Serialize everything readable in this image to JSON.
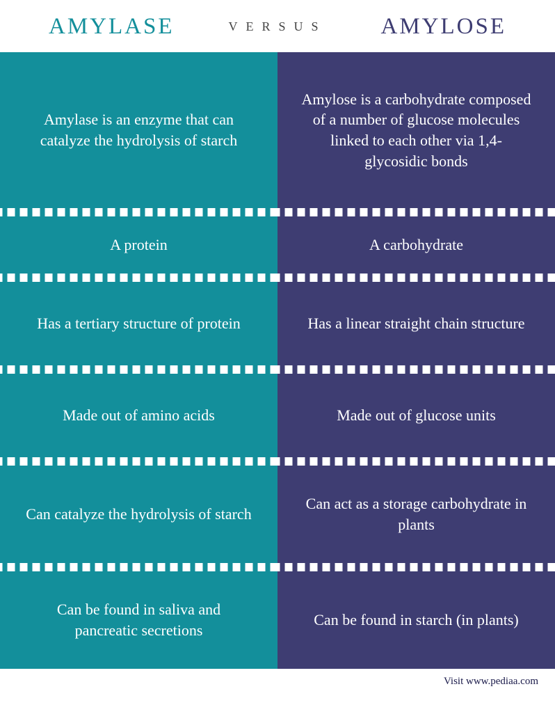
{
  "header": {
    "left": "AMYLASE",
    "center": "VERSUS",
    "right": "AMYLOSE"
  },
  "colors": {
    "left_bg": "#138f9b",
    "right_bg": "#3e3d72",
    "left_heading": "#138f9b",
    "right_heading": "#3e3d72",
    "versus_text": "#444444",
    "footer_text": "#1a1a4a",
    "cell_text": "#ffffff"
  },
  "rows": [
    {
      "left": "Amylase is an enzyme that can catalyze the hydrolysis of starch",
      "right": "Amylose is a carbohydrate composed of a number of glucose molecules linked to each other via 1,4-glycosidic bonds"
    },
    {
      "left": "A protein",
      "right": "A carbohydrate"
    },
    {
      "left": "Has a tertiary structure of protein",
      "right": "Has a linear straight chain structure"
    },
    {
      "left": "Made out of amino acids",
      "right": "Made out of glucose units"
    },
    {
      "left": "Can catalyze the hydrolysis of starch",
      "right": "Can act as a storage carbohydrate in plants"
    },
    {
      "left": "Can be found in saliva and pancreatic secretions",
      "right": "Can be found in starch (in plants)"
    }
  ],
  "footer": "Visit www.pediaa.com"
}
